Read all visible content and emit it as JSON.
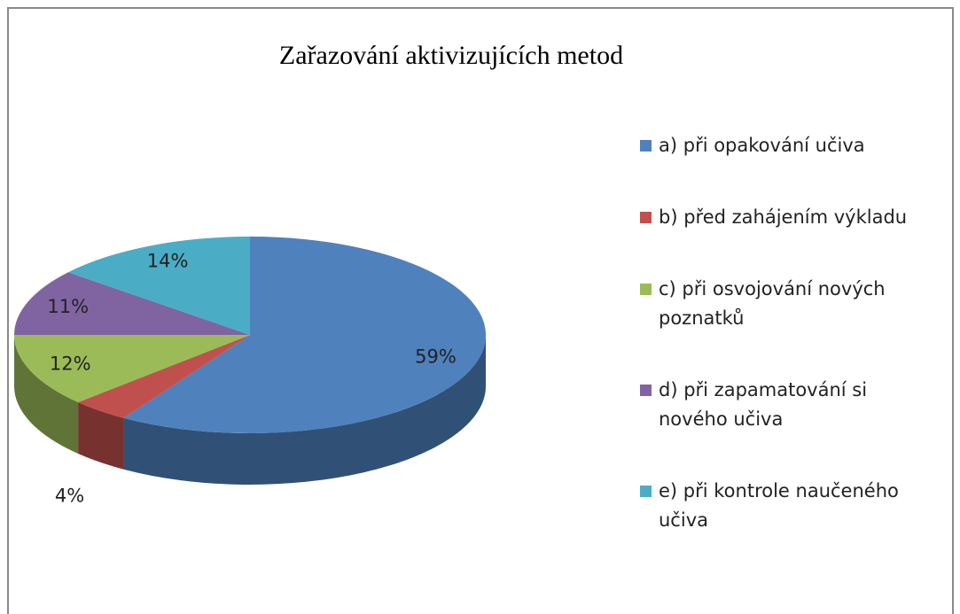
{
  "chart_data": {
    "type": "pie",
    "title": "Zařazování aktivizujících metod",
    "categories": [
      "a) při opakování učiva",
      "b) před zahájením výkladu",
      "c) při osvojování nových poznatků",
      "d) při zapamatování si nového učiva",
      "e) při kontrole naučeného učiva"
    ],
    "values": [
      59,
      4,
      12,
      11,
      14
    ],
    "value_labels": [
      "59%",
      "4%",
      "12%",
      "11%",
      "14%"
    ],
    "colors": [
      "#4f81bd",
      "#c0504d",
      "#9bbb59",
      "#8064a2",
      "#4bacc6"
    ],
    "legend": "right"
  }
}
